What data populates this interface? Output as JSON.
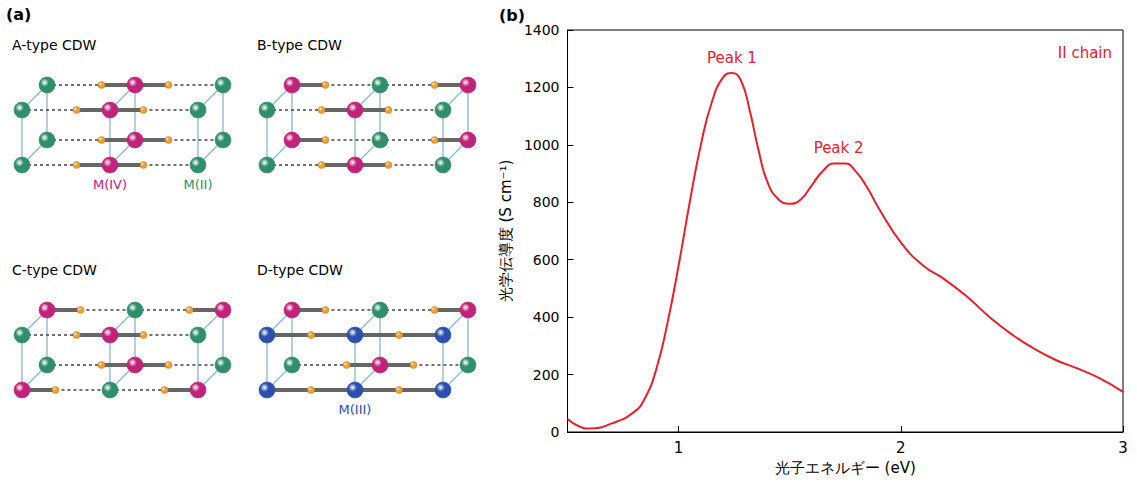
{
  "diagram": {
    "title": "(a)",
    "species": [
      "M(IV)",
      "M(III)",
      "M(II)"
    ],
    "panels": [
      {
        "title": "A-type CDW",
        "chains": [
          [
            "M(II)",
            "M(IV)",
            "M(II)"
          ],
          [
            "M(II)",
            "M(IV)",
            "M(II)"
          ],
          [
            "M(II)",
            "M(IV)",
            "M(II)"
          ],
          [
            "M(II)",
            "M(IV)",
            "M(II)"
          ]
        ],
        "labels": [
          {
            "text": "M(IV)",
            "chain": 0,
            "site": 1
          },
          {
            "text": "M(II)",
            "chain": 0,
            "site": 2
          }
        ]
      },
      {
        "title": "B-type CDW",
        "chains": [
          [
            "M(II)",
            "M(IV)",
            "M(II)"
          ],
          [
            "M(II)",
            "M(IV)",
            "M(II)"
          ],
          [
            "M(IV)",
            "M(II)",
            "M(IV)"
          ],
          [
            "M(IV)",
            "M(II)",
            "M(IV)"
          ]
        ],
        "labels": []
      },
      {
        "title": "C-type CDW",
        "chains": [
          [
            "M(IV)",
            "M(II)",
            "M(IV)"
          ],
          [
            "M(II)",
            "M(IV)",
            "M(II)"
          ],
          [
            "M(II)",
            "M(IV)",
            "M(II)"
          ],
          [
            "M(IV)",
            "M(II)",
            "M(IV)"
          ]
        ],
        "labels": []
      },
      {
        "title": "D-type CDW",
        "chains": [
          [
            "M(III)",
            "M(III)",
            "M(III)"
          ],
          [
            "M(III)",
            "M(III)",
            "M(III)"
          ],
          [
            "M(II)",
            "M(IV)",
            "M(II)"
          ],
          [
            "M(IV)",
            "M(II)",
            "M(IV)"
          ]
        ],
        "labels": [
          {
            "text": "M(III)",
            "chain": 0,
            "site": 1
          }
        ]
      }
    ]
  },
  "chart_data": {
    "type": "line",
    "title": "(b)",
    "x_label": "光子エネルギー (eV)",
    "y_label": "光学伝導度 (S cm⁻¹)",
    "x": [
      0.5,
      0.55,
      0.6,
      0.7,
      0.8,
      0.85,
      0.9,
      0.95,
      1.0,
      1.05,
      1.1,
      1.15,
      1.2,
      1.24,
      1.28,
      1.32,
      1.36,
      1.4,
      1.45,
      1.5,
      1.55,
      1.6,
      1.65,
      1.7,
      1.75,
      1.8,
      1.85,
      1.9,
      2.0,
      2.1,
      2.2,
      2.3,
      2.4,
      2.5,
      2.6,
      2.7,
      2.8,
      2.9,
      3.0
    ],
    "series": [
      {
        "name": "II chain",
        "color": "#e8202a",
        "marker": "none",
        "line_style": "solid",
        "values": [
          45,
          20,
          12,
          30,
          70,
          120,
          220,
          380,
          580,
          800,
          1000,
          1150,
          1235,
          1250,
          1225,
          1120,
          980,
          870,
          810,
          795,
          810,
          860,
          910,
          935,
          935,
          905,
          850,
          780,
          660,
          580,
          530,
          470,
          400,
          340,
          290,
          250,
          220,
          185,
          140
        ]
      }
    ],
    "xlim": [
      0.5,
      3
    ],
    "xticks": [
      1,
      2,
      3
    ],
    "ylim": [
      0,
      1400
    ],
    "yticks": [
      0,
      200,
      400,
      600,
      800,
      1000,
      1200,
      1400
    ],
    "grid": false,
    "legend": "upper right",
    "annotations": [
      {
        "text": "Peak 1",
        "x": 1.24,
        "y": 1250
      },
      {
        "text": "Peak 2",
        "x": 1.72,
        "y": 935
      }
    ]
  }
}
